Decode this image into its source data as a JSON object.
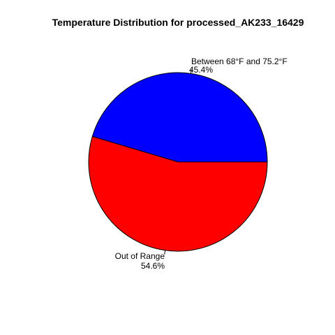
{
  "chart_data": {
    "type": "pie",
    "title": "Temperature Distribution for processed_AK233_16429",
    "slices": [
      {
        "label": "Between 68°F and 75.2°F",
        "percent_text": "45.4%",
        "value": 45.4,
        "color": "#0000ff"
      },
      {
        "label": "Out of Range",
        "percent_text": "54.6%",
        "value": 54.6,
        "color": "#ff0000"
      }
    ],
    "start": "3 o'clock",
    "direction": "counterclockwise",
    "outline_color": "#000000",
    "legend": "none"
  }
}
